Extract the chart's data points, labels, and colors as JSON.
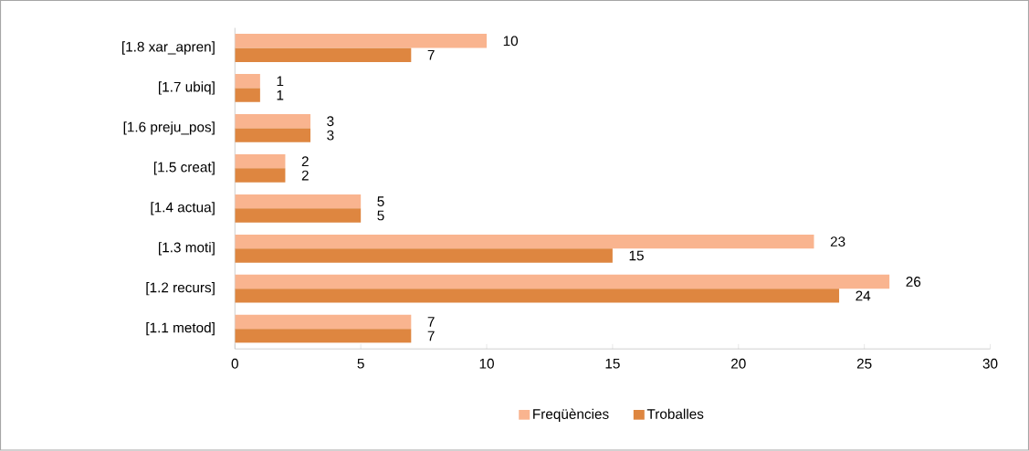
{
  "chart_data": {
    "type": "bar",
    "orientation": "horizontal",
    "categories": [
      "[1.8 xar_apren]",
      "[1.7 ubiq]",
      "[1.6  preju_pos]",
      "[1.5 creat]",
      "[1.4 actua]",
      "[1.3 moti]",
      "[1.2 recurs]",
      "[1.1 metod]"
    ],
    "series": [
      {
        "name": "Freqüències",
        "color": "#f9b48f",
        "values": [
          10,
          1,
          3,
          2,
          5,
          23,
          26,
          7
        ]
      },
      {
        "name": "Troballes",
        "color": "#de8640",
        "values": [
          7,
          1,
          3,
          2,
          5,
          15,
          24,
          7
        ]
      }
    ],
    "xlim": [
      0,
      30
    ],
    "xticks": [
      0,
      5,
      10,
      15,
      20,
      25,
      30
    ],
    "data_labels": true,
    "legend": "bottom",
    "grid": false
  }
}
